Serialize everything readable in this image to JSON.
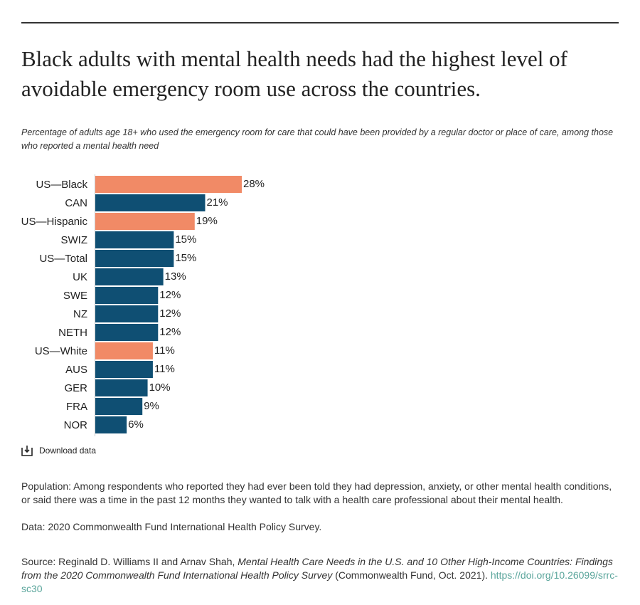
{
  "chart_data": {
    "type": "bar",
    "title": "Black adults with mental health needs had the highest level of avoidable emergency room use across the countries.",
    "subtitle": "Percentage of adults age 18+ who used the emergency room for care that could have been provided by a regular doctor or place of care, among those who reported a mental health need",
    "categories": [
      "US—Black",
      "CAN",
      "US—Hispanic",
      "SWIZ",
      "US—Total",
      "UK",
      "SWE",
      "NZ",
      "NETH",
      "US—White",
      "AUS",
      "GER",
      "FRA",
      "NOR"
    ],
    "values": [
      28,
      21,
      19,
      15,
      15,
      13,
      12,
      12,
      12,
      11,
      11,
      10,
      9,
      6
    ],
    "value_labels": [
      "28%",
      "21%",
      "19%",
      "15%",
      "15%",
      "13%",
      "12%",
      "12%",
      "12%",
      "11%",
      "11%",
      "10%",
      "9%",
      "6%"
    ],
    "colors": [
      "#f18a66",
      "#0f4f73",
      "#f18a66",
      "#0f4f73",
      "#0f4f73",
      "#0f4f73",
      "#0f4f73",
      "#0f4f73",
      "#0f4f73",
      "#f18a66",
      "#0f4f73",
      "#0f4f73",
      "#0f4f73",
      "#0f4f73"
    ]
  },
  "download": "Download data",
  "population": "Population: Among respondents who reported they had ever been told they had depression, anxiety, or other mental health conditions, or said there was a time in the past 12 months they wanted to talk with a health care professional about their mental health.",
  "data_note": "Data: 2020 Commonwealth Fund International Health Policy Survey.",
  "source": {
    "prefix": "Source: Reginald D. Williams II and Arnav Shah, ",
    "publication": "Mental Health Care Needs in the U.S. and 10 Other High-Income Countries: Findings from the 2020 Commonwealth Fund International Health Policy Survey",
    "suffix": " (Commonwealth Fund, Oct. 2021). ",
    "link": "https://doi.org/10.26099/srrc-sc30"
  }
}
